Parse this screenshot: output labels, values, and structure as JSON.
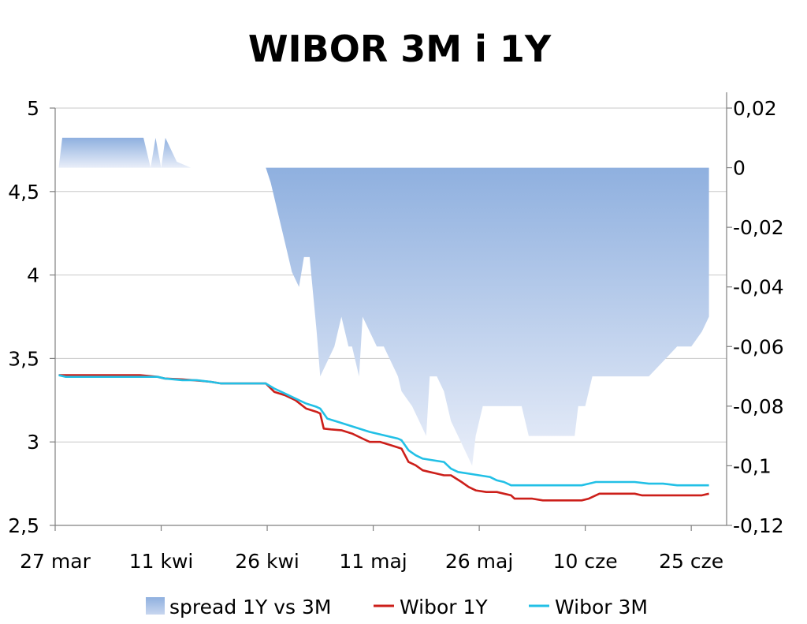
{
  "chart_data": {
    "type": "line",
    "title": "WIBOR 3M i 1Y",
    "x_tick_labels": [
      "27 mar",
      "11 kwi",
      "26 kwi",
      "11 maj",
      "26 maj",
      "10 cze",
      "25 cze"
    ],
    "x_tick_days": [
      0,
      15,
      30,
      45,
      60,
      75,
      90
    ],
    "x_range_days": [
      0,
      95
    ],
    "y_left": {
      "range": [
        2.5,
        5.0
      ],
      "ticks": [
        2.5,
        3.0,
        3.5,
        4.0,
        4.5,
        5.0
      ],
      "tick_labels": [
        "2,5",
        "3",
        "3,5",
        "4",
        "4,5",
        "5"
      ]
    },
    "y_right": {
      "range": [
        -0.12,
        0.02
      ],
      "ticks": [
        -0.12,
        -0.1,
        -0.08,
        -0.06,
        -0.04,
        -0.02,
        0.0,
        0.02
      ],
      "tick_labels": [
        "-0,12",
        "-0,1",
        "-0,08",
        "-0,06",
        "-0,04",
        "-0,02",
        "0",
        "0,02"
      ]
    },
    "grid": true,
    "legend_position": "bottom",
    "series": [
      {
        "name": "spread 1Y vs 3M",
        "type": "area",
        "axis": "right",
        "color": "#95b3e0",
        "segments": [
          [
            [
              0.5,
              0
            ],
            [
              1.0,
              0.01
            ],
            [
              12.5,
              0.01
            ],
            [
              13.5,
              0.0
            ],
            [
              14.2,
              0.01
            ],
            [
              15.0,
              0.0
            ],
            [
              15.6,
              0.01
            ],
            [
              17.2,
              0.002
            ],
            [
              19.2,
              0
            ]
          ],
          [
            [
              29.8,
              0
            ],
            [
              30.5,
              -0.005
            ],
            [
              31.5,
              -0.015
            ],
            [
              32.5,
              -0.025
            ],
            [
              33.5,
              -0.035
            ],
            [
              34.5,
              -0.04
            ],
            [
              35.2,
              -0.03
            ],
            [
              36.0,
              -0.03
            ],
            [
              37.0,
              -0.055
            ],
            [
              37.5,
              -0.07
            ],
            [
              38.5,
              -0.065
            ],
            [
              39.5,
              -0.06
            ],
            [
              40.5,
              -0.05
            ],
            [
              41.5,
              -0.06
            ],
            [
              42.0,
              -0.06
            ],
            [
              43.0,
              -0.07
            ],
            [
              43.5,
              -0.05
            ],
            [
              44.5,
              -0.055
            ],
            [
              45.5,
              -0.06
            ],
            [
              46.5,
              -0.06
            ],
            [
              47.5,
              -0.065
            ],
            [
              48.5,
              -0.07
            ],
            [
              49.0,
              -0.075
            ],
            [
              50.5,
              -0.08
            ],
            [
              51.5,
              -0.085
            ],
            [
              52.5,
              -0.09
            ],
            [
              53.0,
              -0.07
            ],
            [
              54.0,
              -0.07
            ],
            [
              55.0,
              -0.075
            ],
            [
              56.0,
              -0.085
            ],
            [
              57.0,
              -0.09
            ],
            [
              58.0,
              -0.095
            ],
            [
              59.0,
              -0.1
            ],
            [
              59.5,
              -0.09
            ],
            [
              60.5,
              -0.08
            ],
            [
              61.5,
              -0.08
            ],
            [
              62.5,
              -0.08
            ],
            [
              63.5,
              -0.08
            ],
            [
              64.5,
              -0.08
            ],
            [
              66.0,
              -0.08
            ],
            [
              67.0,
              -0.09
            ],
            [
              69.0,
              -0.09
            ],
            [
              71.0,
              -0.09
            ],
            [
              73.5,
              -0.09
            ],
            [
              74.0,
              -0.08
            ],
            [
              75.0,
              -0.08
            ],
            [
              76.0,
              -0.07
            ],
            [
              79.0,
              -0.07
            ],
            [
              83.0,
              -0.07
            ],
            [
              84.0,
              -0.07
            ],
            [
              86.0,
              -0.065
            ],
            [
              88.0,
              -0.06
            ],
            [
              90.0,
              -0.06
            ],
            [
              91.5,
              -0.055
            ],
            [
              92.5,
              -0.05
            ],
            [
              92.5,
              0
            ]
          ]
        ]
      },
      {
        "name": "Wibor 1Y",
        "type": "line",
        "axis": "left",
        "color": "#cc1f1a",
        "points": [
          [
            0.5,
            3.4
          ],
          [
            4,
            3.4
          ],
          [
            8,
            3.4
          ],
          [
            12,
            3.4
          ],
          [
            14.5,
            3.39
          ],
          [
            15.5,
            3.38
          ],
          [
            18,
            3.375
          ],
          [
            19.5,
            3.37
          ],
          [
            22,
            3.36
          ],
          [
            23.5,
            3.35
          ],
          [
            25,
            3.35
          ],
          [
            27,
            3.35
          ],
          [
            29.8,
            3.35
          ],
          [
            31,
            3.3
          ],
          [
            32.5,
            3.28
          ],
          [
            34,
            3.25
          ],
          [
            35.5,
            3.2
          ],
          [
            37,
            3.18
          ],
          [
            37.5,
            3.17
          ],
          [
            38,
            3.08
          ],
          [
            39,
            3.075
          ],
          [
            40.5,
            3.07
          ],
          [
            42,
            3.05
          ],
          [
            43.5,
            3.02
          ],
          [
            44.5,
            3.0
          ],
          [
            46,
            3.0
          ],
          [
            47.5,
            2.98
          ],
          [
            49,
            2.96
          ],
          [
            50,
            2.88
          ],
          [
            51,
            2.86
          ],
          [
            52,
            2.83
          ],
          [
            53,
            2.82
          ],
          [
            54,
            2.81
          ],
          [
            55,
            2.8
          ],
          [
            56,
            2.8
          ],
          [
            57.5,
            2.76
          ],
          [
            58.5,
            2.73
          ],
          [
            59.5,
            2.71
          ],
          [
            61,
            2.7
          ],
          [
            62.5,
            2.7
          ],
          [
            63.5,
            2.69
          ],
          [
            64.5,
            2.68
          ],
          [
            65,
            2.66
          ],
          [
            66,
            2.66
          ],
          [
            67.5,
            2.66
          ],
          [
            69,
            2.65
          ],
          [
            71,
            2.65
          ],
          [
            73,
            2.65
          ],
          [
            74.5,
            2.65
          ],
          [
            75.5,
            2.66
          ],
          [
            77,
            2.69
          ],
          [
            78.5,
            2.69
          ],
          [
            80,
            2.69
          ],
          [
            82,
            2.69
          ],
          [
            83,
            2.68
          ],
          [
            86,
            2.68
          ],
          [
            88,
            2.68
          ],
          [
            91.5,
            2.68
          ],
          [
            92.5,
            2.69
          ]
        ]
      },
      {
        "name": "Wibor 3M",
        "type": "line",
        "axis": "left",
        "color": "#22c0e6",
        "points": [
          [
            0.5,
            3.4
          ],
          [
            1.5,
            3.39
          ],
          [
            4,
            3.39
          ],
          [
            8,
            3.39
          ],
          [
            12,
            3.39
          ],
          [
            14.5,
            3.39
          ],
          [
            15.5,
            3.38
          ],
          [
            18,
            3.37
          ],
          [
            20,
            3.37
          ],
          [
            22,
            3.36
          ],
          [
            23.5,
            3.35
          ],
          [
            25,
            3.35
          ],
          [
            29.8,
            3.35
          ],
          [
            31,
            3.32
          ],
          [
            32.5,
            3.29
          ],
          [
            34,
            3.26
          ],
          [
            35.5,
            3.23
          ],
          [
            37,
            3.21
          ],
          [
            37.5,
            3.2
          ],
          [
            38.5,
            3.14
          ],
          [
            40,
            3.12
          ],
          [
            41.5,
            3.1
          ],
          [
            43,
            3.08
          ],
          [
            44.5,
            3.06
          ],
          [
            45.5,
            3.05
          ],
          [
            47.5,
            3.03
          ],
          [
            48.5,
            3.02
          ],
          [
            49,
            3.01
          ],
          [
            50,
            2.95
          ],
          [
            51,
            2.92
          ],
          [
            52,
            2.9
          ],
          [
            53.5,
            2.89
          ],
          [
            55,
            2.88
          ],
          [
            56,
            2.84
          ],
          [
            57,
            2.82
          ],
          [
            58.5,
            2.81
          ],
          [
            60,
            2.8
          ],
          [
            61.5,
            2.79
          ],
          [
            62.5,
            2.77
          ],
          [
            63.5,
            2.76
          ],
          [
            64.5,
            2.74
          ],
          [
            66,
            2.74
          ],
          [
            68,
            2.74
          ],
          [
            70,
            2.74
          ],
          [
            72,
            2.74
          ],
          [
            74.5,
            2.74
          ],
          [
            75.5,
            2.75
          ],
          [
            76.5,
            2.76
          ],
          [
            78,
            2.76
          ],
          [
            80,
            2.76
          ],
          [
            82,
            2.76
          ],
          [
            84,
            2.75
          ],
          [
            86,
            2.75
          ],
          [
            88,
            2.74
          ],
          [
            90,
            2.74
          ],
          [
            92.5,
            2.74
          ]
        ]
      }
    ]
  }
}
